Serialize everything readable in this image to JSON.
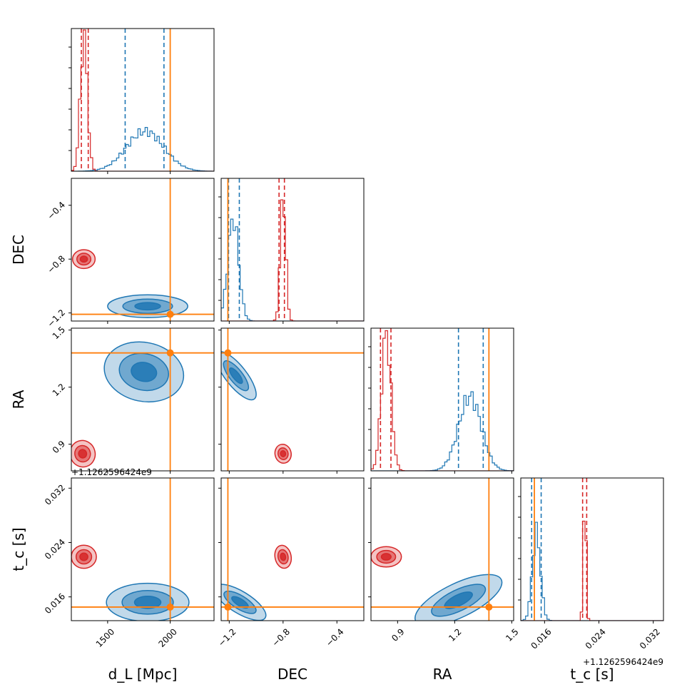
{
  "chart_data": {
    "type": "corner",
    "parameters": [
      {
        "key": "dL",
        "label": "d_L [Mpc]",
        "range": [
          1210,
          2350
        ],
        "ticks": [
          1500,
          2000
        ],
        "tick_labels": [
          "1500",
          "2000"
        ],
        "truth": 2000
      },
      {
        "key": "DEC",
        "label": "DEC",
        "range": [
          -1.26,
          -0.2
        ],
        "ticks": [
          -1.2,
          -0.8,
          -0.4
        ],
        "tick_labels": [
          "−1.2",
          "−0.8",
          "−0.4"
        ],
        "truth": -1.21
      },
      {
        "key": "RA",
        "label": "RA",
        "range": [
          0.76,
          1.51
        ],
        "ticks": [
          0.9,
          1.2,
          1.5
        ],
        "tick_labels": [
          "0.9",
          "1.2",
          "1.5"
        ],
        "truth": 1.38
      },
      {
        "key": "tc",
        "label": "t_c [s]",
        "range": [
          0.0125,
          0.0335
        ],
        "ticks": [
          0.016,
          0.024,
          0.032
        ],
        "tick_labels": [
          "0.016",
          "0.024",
          "0.032"
        ],
        "truth": 0.0145,
        "offset_label": "+1.1262596424e9"
      }
    ],
    "series": [
      {
        "color": "#1f77b4",
        "marginals": [
          {
            "mean": 1800,
            "sd": 150,
            "q_lo": 1640,
            "q_hi": 1950,
            "peak": 0.28
          },
          {
            "mean": -1.17,
            "sd": 0.04,
            "q_lo": -1.205,
            "q_hi": -1.125,
            "peak": 0.72
          },
          {
            "mean": 1.28,
            "sd": 0.06,
            "q_lo": 1.22,
            "q_hi": 1.35,
            "peak": 0.52
          },
          {
            "mean": 0.0148,
            "sd": 0.0006,
            "q_lo": 0.0141,
            "q_hi": 0.0155,
            "peak": 0.62
          }
        ],
        "blobs": [
          {
            "x": "dL",
            "y": "DEC",
            "cx": 1820,
            "cy": -1.15,
            "rx": 320,
            "ry": 0.085,
            "rot": 0
          },
          {
            "x": "dL",
            "y": "RA",
            "cx": 1790,
            "cy": 1.28,
            "rx": 320,
            "ry": 0.155,
            "rot": -0.2
          },
          {
            "x": "dL",
            "y": "tc",
            "cx": 1820,
            "cy": 0.0152,
            "rx": 330,
            "ry": 0.0028,
            "rot": 0
          },
          {
            "x": "DEC",
            "y": "RA",
            "cx": -1.15,
            "cy": 1.26,
            "rx": 0.22,
            "ry": 0.055,
            "rot": -0.9
          },
          {
            "x": "DEC",
            "y": "tc",
            "cx": -1.12,
            "cy": 0.0152,
            "rx": 0.22,
            "ry": 0.0016,
            "rot": -0.55
          },
          {
            "x": "RA",
            "y": "tc",
            "cx": 1.22,
            "cy": 0.0155,
            "rx": 0.25,
            "ry": 0.0025,
            "rot": 0.45
          }
        ]
      },
      {
        "color": "#d62728",
        "marginals": [
          {
            "mean": 1310,
            "sd": 28,
            "q_lo": 1290,
            "q_hi": 1345,
            "peak": 0.95
          },
          {
            "mean": -0.8,
            "sd": 0.02,
            "q_lo": -0.83,
            "q_hi": -0.79,
            "peak": 0.9
          },
          {
            "mean": 0.84,
            "sd": 0.025,
            "q_lo": 0.81,
            "q_hi": 0.865,
            "peak": 0.96
          },
          {
            "mean": 0.0219,
            "sd": 0.0002,
            "q_lo": 0.0216,
            "q_hi": 0.0222,
            "peak": 0.96
          }
        ],
        "blobs": [
          {
            "x": "dL",
            "y": "DEC",
            "cx": 1310,
            "cy": -0.8,
            "rx": 90,
            "ry": 0.07,
            "rot": 0
          },
          {
            "x": "dL",
            "y": "RA",
            "cx": 1300,
            "cy": 0.85,
            "rx": 100,
            "ry": 0.07,
            "rot": 0.3
          },
          {
            "x": "dL",
            "y": "tc",
            "cx": 1310,
            "cy": 0.0219,
            "rx": 100,
            "ry": 0.0017,
            "rot": 0
          },
          {
            "x": "DEC",
            "y": "RA",
            "cx": -0.8,
            "cy": 0.85,
            "rx": 0.06,
            "ry": 0.05,
            "rot": 0.2
          },
          {
            "x": "DEC",
            "y": "tc",
            "cx": -0.8,
            "cy": 0.0219,
            "rx": 0.06,
            "ry": 0.0017,
            "rot": 0.2
          },
          {
            "x": "RA",
            "y": "tc",
            "cx": 0.84,
            "cy": 0.0219,
            "rx": 0.08,
            "ry": 0.0015,
            "rot": 0
          }
        ]
      }
    ],
    "truth_color": "#ff7f0e"
  }
}
